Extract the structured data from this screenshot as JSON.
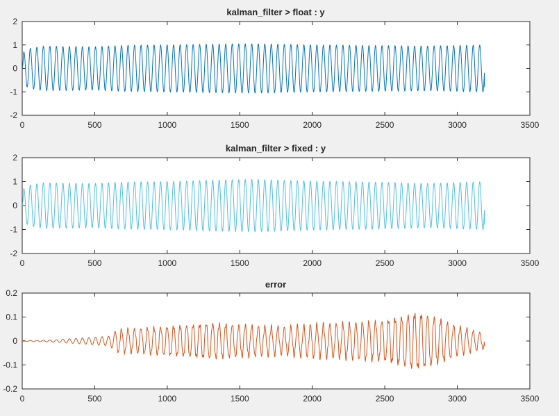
{
  "chart_data": [
    {
      "type": "line",
      "title": "kalman_filter > float : y",
      "xlabel": "",
      "ylabel": "",
      "xlim": [
        0,
        3500
      ],
      "ylim": [
        -2,
        2
      ],
      "xticks": [
        "0",
        "500",
        "1000",
        "1500",
        "2000",
        "2500",
        "3000",
        "3500"
      ],
      "yticks": [
        "-2",
        "-1",
        "0",
        "1",
        "2"
      ],
      "grid": false,
      "color": "#0072bd",
      "series": [
        {
          "signal": "sine",
          "x_end": 3188,
          "cycles": 71,
          "envelope": [
            [
              0,
              0.0
            ],
            [
              10,
              0.7
            ],
            [
              50,
              0.85
            ],
            [
              150,
              0.95
            ],
            [
              500,
              0.92
            ],
            [
              700,
              0.98
            ],
            [
              1000,
              1.0
            ],
            [
              1300,
              1.03
            ],
            [
              1600,
              1.05
            ],
            [
              2000,
              1.0
            ],
            [
              2500,
              0.97
            ],
            [
              2800,
              0.95
            ],
            [
              3188,
              1.0
            ]
          ],
          "end_value": -0.8
        }
      ]
    },
    {
      "type": "line",
      "title": "kalman_filter > fixed : y",
      "xlabel": "",
      "ylabel": "",
      "xlim": [
        0,
        3500
      ],
      "ylim": [
        -2,
        2
      ],
      "xticks": [
        "0",
        "500",
        "1000",
        "1500",
        "2000",
        "2500",
        "3000",
        "3500"
      ],
      "yticks": [
        "-2",
        "-1",
        "0",
        "1",
        "2"
      ],
      "grid": false,
      "color": "#4dbeee",
      "series": [
        {
          "signal": "sine",
          "x_end": 3188,
          "cycles": 71,
          "envelope": [
            [
              0,
              0.0
            ],
            [
              10,
              0.7
            ],
            [
              50,
              0.85
            ],
            [
              150,
              0.95
            ],
            [
              500,
              0.92
            ],
            [
              700,
              0.98
            ],
            [
              1000,
              1.0
            ],
            [
              1300,
              1.06
            ],
            [
              1600,
              1.09
            ],
            [
              2000,
              1.02
            ],
            [
              2500,
              0.97
            ],
            [
              2800,
              0.92
            ],
            [
              3188,
              1.0
            ]
          ],
          "end_value": -0.8
        }
      ]
    },
    {
      "type": "line",
      "title": "error",
      "xlabel": "",
      "ylabel": "",
      "xlim": [
        0,
        3500
      ],
      "ylim": [
        -0.2,
        0.2
      ],
      "xticks": [
        "0",
        "500",
        "1000",
        "1500",
        "2000",
        "2500",
        "3000",
        "3500"
      ],
      "yticks": [
        "-0.2",
        "-0.1",
        "0",
        "0.1",
        "0.2"
      ],
      "grid": false,
      "color": "#d95319",
      "series": [
        {
          "signal": "sine",
          "x_end": 3188,
          "cycles": 71,
          "envelope": [
            [
              0,
              0.002
            ],
            [
              200,
              0.004
            ],
            [
              400,
              0.012
            ],
            [
              600,
              0.02
            ],
            [
              650,
              0.045
            ],
            [
              800,
              0.05
            ],
            [
              1000,
              0.06
            ],
            [
              1300,
              0.075
            ],
            [
              1500,
              0.065
            ],
            [
              1800,
              0.055
            ],
            [
              2000,
              0.065
            ],
            [
              2200,
              0.07
            ],
            [
              2500,
              0.085
            ],
            [
              2700,
              0.12
            ],
            [
              2800,
              0.11
            ],
            [
              3000,
              0.06
            ],
            [
              3188,
              0.03
            ]
          ],
          "end_value": -0.02
        }
      ]
    }
  ]
}
